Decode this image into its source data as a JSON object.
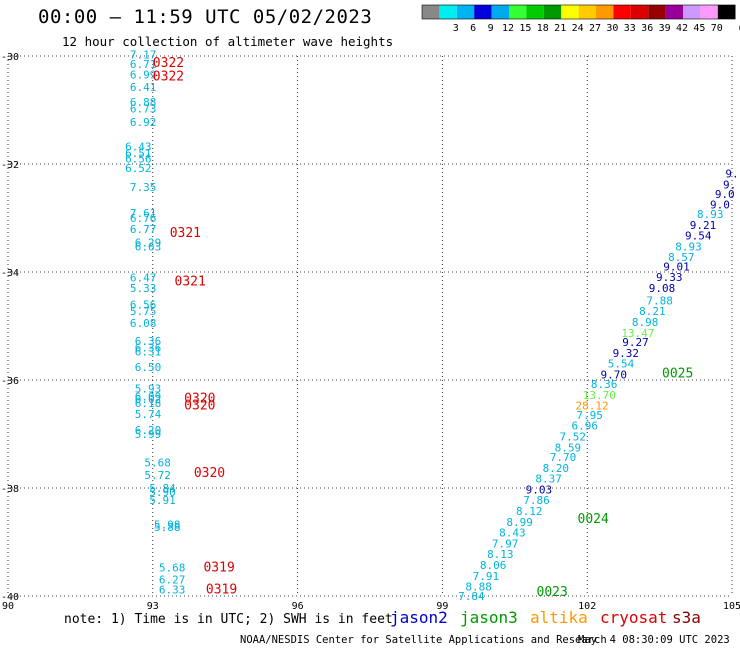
{
  "header": {
    "title": "00:00 – 11:59 UTC 05/02/2023",
    "subtitle": "12 hour collection of altimeter wave heights"
  },
  "legend": {
    "colors": [
      "#888888",
      "#00eeee",
      "#00b4f0",
      "#0000dd",
      "#00aaee",
      "#33ff33",
      "#00cc00",
      "#009900",
      "#ffff00",
      "#ffcc00",
      "#ff9900",
      "#ff0000",
      "#dd0000",
      "#990000",
      "#990099",
      "#cc99ff",
      "#ff99ff",
      "#000000"
    ],
    "labels": [
      "3",
      "6",
      "9",
      "12",
      "15",
      "18",
      "21",
      "24",
      "27",
      "30",
      "33",
      "36",
      "39",
      "42",
      "45",
      "70"
    ],
    "unit": "(ft)"
  },
  "footer": {
    "note": "note: 1) Time is in UTC; 2) SWH is in feet",
    "satellites": [
      {
        "name": "jason2",
        "color": "#0000cc"
      },
      {
        "name": "jason3",
        "color": "#009900"
      },
      {
        "name": "altika",
        "color": "#ff9900"
      },
      {
        "name": "cryosat",
        "color": "#dd0000"
      },
      {
        "name": "s3a",
        "color": "#880000"
      }
    ],
    "credit": "NOAA/NESDIS Center for Satellite Applications and Research",
    "timestamp": "May  4 08:30:09 UTC 2023"
  },
  "chart_data": {
    "type": "scatter",
    "title": "12 hour collection of altimeter wave heights",
    "xlim": [
      90,
      105
    ],
    "ylim": [
      -40,
      -30
    ],
    "xticks": [
      "90",
      "93",
      "96",
      "99",
      "102",
      "105"
    ],
    "yticks": [
      "-30",
      "-32",
      "-34",
      "-36",
      "-38",
      "-40"
    ],
    "grid": true,
    "wave_heights": [
      {
        "x": 92.8,
        "y": -30.05,
        "label": "7.17",
        "color": "#00b4dc"
      },
      {
        "x": 92.8,
        "y": -30.22,
        "label": "6.71",
        "color": "#00b4dc"
      },
      {
        "x": 92.8,
        "y": -30.42,
        "label": "6.99",
        "color": "#00b4dc"
      },
      {
        "x": 92.8,
        "y": -30.65,
        "label": "6.41",
        "color": "#00b4dc"
      },
      {
        "x": 92.8,
        "y": -30.93,
        "label": "6.88",
        "color": "#00b4dc"
      },
      {
        "x": 92.8,
        "y": -31.05,
        "label": "6.73",
        "color": "#00b4dc"
      },
      {
        "x": 92.8,
        "y": -31.3,
        "label": "6.92",
        "color": "#00b4dc"
      },
      {
        "x": 92.7,
        "y": -31.75,
        "label": "6.43",
        "color": "#00b4dc"
      },
      {
        "x": 92.7,
        "y": -31.87,
        "label": "6.51",
        "color": "#00b4dc"
      },
      {
        "x": 92.7,
        "y": -31.97,
        "label": "6.56",
        "color": "#00b4dc"
      },
      {
        "x": 92.7,
        "y": -32.15,
        "label": "6.52",
        "color": "#00b4dc"
      },
      {
        "x": 92.8,
        "y": -32.5,
        "label": "7.35",
        "color": "#00b4dc"
      },
      {
        "x": 92.8,
        "y": -32.98,
        "label": "7.61",
        "color": "#00b4dc"
      },
      {
        "x": 92.8,
        "y": -33.07,
        "label": "6.76",
        "color": "#00b4dc"
      },
      {
        "x": 92.8,
        "y": -33.28,
        "label": "6.77",
        "color": "#00b4dc"
      },
      {
        "x": 92.9,
        "y": -33.53,
        "label": "6.29",
        "color": "#00b4dc"
      },
      {
        "x": 92.9,
        "y": -33.6,
        "label": "6.63",
        "color": "#00b4dc"
      },
      {
        "x": 92.8,
        "y": -34.18,
        "label": "6.47",
        "color": "#00b4dc"
      },
      {
        "x": 92.8,
        "y": -34.37,
        "label": "5.33",
        "color": "#00b4dc"
      },
      {
        "x": 92.8,
        "y": -34.68,
        "label": "6.56",
        "color": "#00b4dc"
      },
      {
        "x": 92.8,
        "y": -34.8,
        "label": "5.75",
        "color": "#00b4dc"
      },
      {
        "x": 92.8,
        "y": -35.02,
        "label": "6.08",
        "color": "#00b4dc"
      },
      {
        "x": 92.9,
        "y": -35.35,
        "label": "6.36",
        "color": "#00b4dc"
      },
      {
        "x": 92.9,
        "y": -35.47,
        "label": "6.36",
        "color": "#00b4dc"
      },
      {
        "x": 92.9,
        "y": -35.55,
        "label": "6.31",
        "color": "#00b4dc"
      },
      {
        "x": 92.9,
        "y": -35.83,
        "label": "6.50",
        "color": "#00b4dc"
      },
      {
        "x": 92.9,
        "y": -36.23,
        "label": "5.93",
        "color": "#00b4dc"
      },
      {
        "x": 92.9,
        "y": -36.38,
        "label": "6.09",
        "color": "#00b4dc"
      },
      {
        "x": 92.9,
        "y": -36.43,
        "label": "6.02",
        "color": "#00b4dc"
      },
      {
        "x": 92.9,
        "y": -36.5,
        "label": "6.18",
        "color": "#00b4dc"
      },
      {
        "x": 92.9,
        "y": -36.7,
        "label": "5.74",
        "color": "#00b4dc"
      },
      {
        "x": 92.9,
        "y": -37.0,
        "label": "6.20",
        "color": "#00b4dc"
      },
      {
        "x": 92.9,
        "y": -37.07,
        "label": "5.99",
        "color": "#00b4dc"
      },
      {
        "x": 93.1,
        "y": -37.6,
        "label": "5.68",
        "color": "#00b4dc"
      },
      {
        "x": 93.1,
        "y": -37.83,
        "label": "5.72",
        "color": "#00b4dc"
      },
      {
        "x": 93.2,
        "y": -38.07,
        "label": "5.84",
        "color": "#00b4dc"
      },
      {
        "x": 93.2,
        "y": -38.15,
        "label": "5.90",
        "color": "#00b4dc"
      },
      {
        "x": 93.2,
        "y": -38.3,
        "label": "5.91",
        "color": "#00b4dc"
      },
      {
        "x": 93.3,
        "y": -38.75,
        "label": "5.98",
        "color": "#00b4dc"
      },
      {
        "x": 93.3,
        "y": -38.8,
        "label": "5.88",
        "color": "#00b4dc"
      },
      {
        "x": 93.4,
        "y": -39.55,
        "label": "5.68",
        "color": "#00b4dc"
      },
      {
        "x": 93.4,
        "y": -39.77,
        "label": "6.27",
        "color": "#00b4dc"
      },
      {
        "x": 93.4,
        "y": -39.95,
        "label": "6.33",
        "color": "#00b4dc"
      },
      {
        "x": 105.0,
        "y": -32.25,
        "label": "9.",
        "color": "#0000aa"
      },
      {
        "x": 104.95,
        "y": -32.45,
        "label": "9.",
        "color": "#0000aa"
      },
      {
        "x": 104.85,
        "y": -32.63,
        "label": "9.0",
        "color": "#0000aa"
      },
      {
        "x": 104.75,
        "y": -32.82,
        "label": "9.0",
        "color": "#0000aa"
      },
      {
        "x": 104.55,
        "y": -33.0,
        "label": "8.93",
        "color": "#00b4dc"
      },
      {
        "x": 104.4,
        "y": -33.2,
        "label": "9.21",
        "color": "#0000aa"
      },
      {
        "x": 104.3,
        "y": -33.4,
        "label": "9.54",
        "color": "#0000aa"
      },
      {
        "x": 104.1,
        "y": -33.6,
        "label": "8.93",
        "color": "#00b4dc"
      },
      {
        "x": 103.95,
        "y": -33.8,
        "label": "8.57",
        "color": "#00b4dc"
      },
      {
        "x": 103.85,
        "y": -33.97,
        "label": "9.01",
        "color": "#0000aa"
      },
      {
        "x": 103.7,
        "y": -34.17,
        "label": "9.33",
        "color": "#0000aa"
      },
      {
        "x": 103.55,
        "y": -34.37,
        "label": "9.08",
        "color": "#0000aa"
      },
      {
        "x": 103.5,
        "y": -34.6,
        "label": "7.88",
        "color": "#00b4dc"
      },
      {
        "x": 103.35,
        "y": -34.8,
        "label": "8.21",
        "color": "#00b4dc"
      },
      {
        "x": 103.2,
        "y": -35.0,
        "label": "8.98",
        "color": "#00b4dc"
      },
      {
        "x": 103.05,
        "y": -35.2,
        "label": "13.47",
        "color": "#66ee44"
      },
      {
        "x": 103.0,
        "y": -35.37,
        "label": "9.27",
        "color": "#0000aa"
      },
      {
        "x": 102.8,
        "y": -35.57,
        "label": "9.32",
        "color": "#0000aa"
      },
      {
        "x": 102.7,
        "y": -35.77,
        "label": "5.54",
        "color": "#00b4dc"
      },
      {
        "x": 102.55,
        "y": -35.97,
        "label": "9.70",
        "color": "#0000aa"
      },
      {
        "x": 102.35,
        "y": -36.15,
        "label": "8.36",
        "color": "#00b4dc"
      },
      {
        "x": 102.25,
        "y": -36.35,
        "label": "13.70",
        "color": "#66ee44"
      },
      {
        "x": 102.1,
        "y": -36.55,
        "label": "28.12",
        "color": "#ff9900"
      },
      {
        "x": 102.05,
        "y": -36.72,
        "label": "7.95",
        "color": "#00b4dc"
      },
      {
        "x": 101.95,
        "y": -36.92,
        "label": "6.96",
        "color": "#00b4dc"
      },
      {
        "x": 101.7,
        "y": -37.12,
        "label": "7.52",
        "color": "#00b4dc"
      },
      {
        "x": 101.6,
        "y": -37.32,
        "label": "8.59",
        "color": "#00b4dc"
      },
      {
        "x": 101.5,
        "y": -37.5,
        "label": "7.70",
        "color": "#00b4dc"
      },
      {
        "x": 101.35,
        "y": -37.7,
        "label": "8.20",
        "color": "#00b4dc"
      },
      {
        "x": 101.2,
        "y": -37.9,
        "label": "8.37",
        "color": "#00b4dc"
      },
      {
        "x": 101.0,
        "y": -38.1,
        "label": "9.03",
        "color": "#0000aa"
      },
      {
        "x": 100.95,
        "y": -38.3,
        "label": "7.86",
        "color": "#00b4dc"
      },
      {
        "x": 100.8,
        "y": -38.5,
        "label": "8.12",
        "color": "#00b4dc"
      },
      {
        "x": 100.6,
        "y": -38.7,
        "label": "8.99",
        "color": "#00b4dc"
      },
      {
        "x": 100.45,
        "y": -38.9,
        "label": "8.43",
        "color": "#00b4dc"
      },
      {
        "x": 100.3,
        "y": -39.1,
        "label": "7.97",
        "color": "#00b4dc"
      },
      {
        "x": 100.2,
        "y": -39.3,
        "label": "8.13",
        "color": "#00b4dc"
      },
      {
        "x": 100.05,
        "y": -39.5,
        "label": "8.06",
        "color": "#00b4dc"
      },
      {
        "x": 99.9,
        "y": -39.7,
        "label": "7.91",
        "color": "#00b4dc"
      },
      {
        "x": 99.75,
        "y": -39.9,
        "label": "8.88",
        "color": "#00b4dc"
      },
      {
        "x": 99.6,
        "y": -40.07,
        "label": "7.84",
        "color": "#00b4dc"
      }
    ],
    "time_labels": [
      {
        "x": 93.0,
        "y": -30.2,
        "label": "0322",
        "color": "#dd0000"
      },
      {
        "x": 93.0,
        "y": -30.45,
        "label": "0322",
        "color": "#dd0000"
      },
      {
        "x": 93.35,
        "y": -33.35,
        "label": "0321",
        "color": "#dd0000"
      },
      {
        "x": 93.45,
        "y": -34.25,
        "label": "0321",
        "color": "#dd0000"
      },
      {
        "x": 93.65,
        "y": -36.42,
        "label": "0320",
        "color": "#dd0000"
      },
      {
        "x": 93.65,
        "y": -36.55,
        "label": "0320",
        "color": "#dd0000"
      },
      {
        "x": 93.85,
        "y": -37.8,
        "label": "0320",
        "color": "#dd0000"
      },
      {
        "x": 94.05,
        "y": -39.55,
        "label": "0319",
        "color": "#dd0000"
      },
      {
        "x": 94.1,
        "y": -39.95,
        "label": "0319",
        "color": "#dd0000"
      },
      {
        "x": 103.55,
        "y": -35.95,
        "label": "0025",
        "color": "#009900"
      },
      {
        "x": 101.8,
        "y": -38.65,
        "label": "0024",
        "color": "#009900"
      },
      {
        "x": 100.95,
        "y": -40.0,
        "label": "0023",
        "color": "#009900"
      }
    ]
  }
}
